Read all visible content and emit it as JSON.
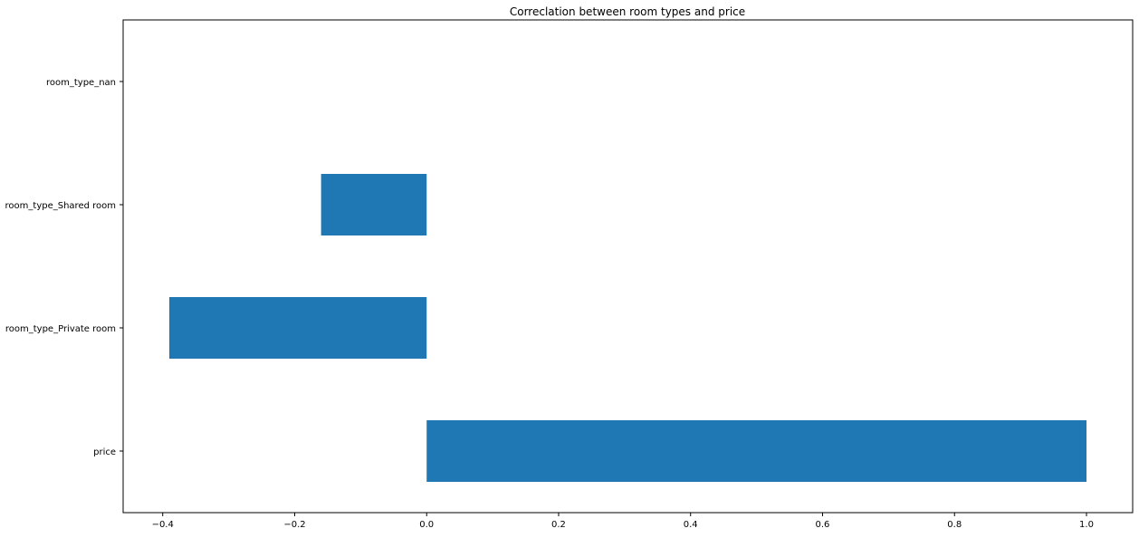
{
  "chart_data": {
    "type": "bar",
    "orientation": "horizontal",
    "title": "Correclation between room types and price",
    "xlabel": "",
    "ylabel": "",
    "categories": [
      "price",
      "room_type_Private room",
      "room_type_Shared room",
      "room_type_nan"
    ],
    "values": [
      1.0,
      -0.39,
      -0.16,
      0.0
    ],
    "xlim": [
      -0.46,
      1.07
    ],
    "xticks": [
      -0.4,
      -0.2,
      0.0,
      0.2,
      0.4,
      0.6,
      0.8,
      1.0
    ],
    "xtick_labels": [
      "−0.4",
      "−0.2",
      "0.0",
      "0.2",
      "0.4",
      "0.6",
      "0.8",
      "1.0"
    ],
    "bar_color": "#1f77b4",
    "grid": false,
    "legend": "none"
  }
}
